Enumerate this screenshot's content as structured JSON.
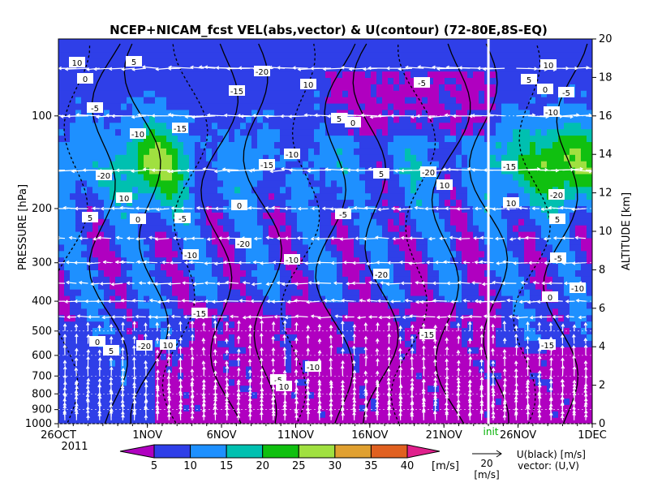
{
  "chart_data": {
    "type": "heatmap",
    "title": "NCEP+NICAM_fcst VEL(abs,vector) & U(contour)   (72-80E,8S-EQ)",
    "ylabel": "PRESSURE [hPa]",
    "y2label": "ALTITUDE [km]",
    "x_tick_labels": [
      "26OCT",
      "1NOV",
      "6NOV",
      "11NOV",
      "16NOV",
      "21NOV",
      "26NOV",
      "1DEC"
    ],
    "x_year_label": "2011",
    "x_range": [
      "26OCT",
      "1DEC"
    ],
    "y_range_hpa": [
      1000,
      50
    ],
    "y_tick_labels": [
      "100",
      "200",
      "300",
      "400",
      "500",
      "600",
      "700",
      "800",
      "900",
      "1000"
    ],
    "y_ticks_hpa": [
      100,
      200,
      300,
      400,
      500,
      600,
      700,
      800,
      900,
      1000
    ],
    "y2_range_km": [
      0,
      20
    ],
    "y2_tick_labels": [
      "0",
      "2",
      "4",
      "6",
      "8",
      "10",
      "12",
      "14",
      "16",
      "18",
      "20"
    ],
    "init_label": "init",
    "init_date": "24NOV",
    "colorbar": {
      "ticks": [
        "5",
        "10",
        "15",
        "20",
        "25",
        "30",
        "35",
        "40"
      ],
      "unit": "[m/s]",
      "colors": [
        "#b000c0",
        "#2f3fe8",
        "#1e90ff",
        "#00c0b0",
        "#10c010",
        "#a0e040",
        "#e0a030",
        "#e06020",
        "#e0208c"
      ]
    },
    "vector_legend": {
      "value": "20",
      "unit": "[m/s]"
    },
    "legend_note_1": "U(black) [m/s]",
    "legend_note_2": "vector: (U,V)",
    "contour_labels": [
      "10",
      "5",
      "0",
      "-5",
      "-10",
      "-15",
      "-20"
    ]
  }
}
